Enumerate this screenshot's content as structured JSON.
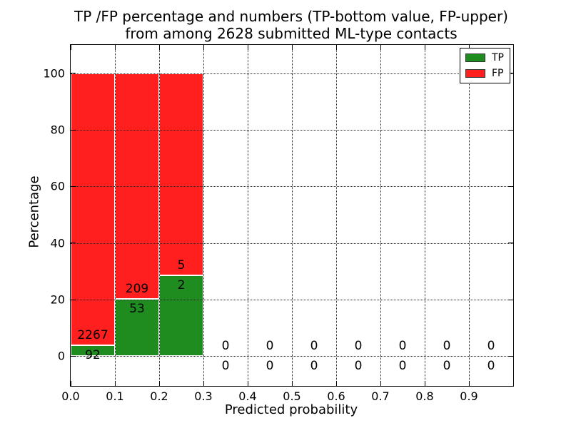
{
  "chart_data": {
    "type": "bar",
    "stacked": true,
    "title": "TP /FP percentage and numbers (TP-bottom value, FP-upper)\nfrom among 2628 submitted ML-type contacts",
    "title_lines": [
      "TP /FP percentage and numbers (TP-bottom value, FP-upper)",
      "from among 2628 submitted ML-type contacts"
    ],
    "xlabel": "Predicted probability",
    "ylabel": "Percentage",
    "xlim": [
      0.0,
      1.0
    ],
    "ylim": [
      -10.5,
      110.0
    ],
    "xticks": [
      0.0,
      0.1,
      0.2,
      0.3,
      0.4,
      0.5,
      0.6,
      0.7,
      0.8,
      0.9
    ],
    "xtick_labels": [
      "0.0",
      "0.1",
      "0.2",
      "0.3",
      "0.4",
      "0.5",
      "0.6",
      "0.7",
      "0.8",
      "0.9"
    ],
    "yticks": [
      0,
      20,
      40,
      60,
      80,
      100
    ],
    "grid": "dotted",
    "legend_position": "upper right",
    "bar_edge_color": "#ffffff",
    "label_offset_pct": 3.5,
    "series": [
      {
        "name": "TP",
        "color": "#1e8c1e"
      },
      {
        "name": "FP",
        "color": "#ff1f1f"
      }
    ],
    "bins": [
      {
        "range": [
          0.0,
          0.1
        ],
        "tp": 92,
        "fp": 2267
      },
      {
        "range": [
          0.1,
          0.2
        ],
        "tp": 53,
        "fp": 209
      },
      {
        "range": [
          0.2,
          0.3
        ],
        "tp": 2,
        "fp": 5
      },
      {
        "range": [
          0.3,
          0.4
        ],
        "tp": 0,
        "fp": 0
      },
      {
        "range": [
          0.4,
          0.5
        ],
        "tp": 0,
        "fp": 0
      },
      {
        "range": [
          0.5,
          0.6
        ],
        "tp": 0,
        "fp": 0
      },
      {
        "range": [
          0.6,
          0.7
        ],
        "tp": 0,
        "fp": 0
      },
      {
        "range": [
          0.7,
          0.8
        ],
        "tp": 0,
        "fp": 0
      },
      {
        "range": [
          0.8,
          0.9
        ],
        "tp": 0,
        "fp": 0
      },
      {
        "range": [
          0.9,
          1.0
        ],
        "tp": 0,
        "fp": 0
      }
    ]
  }
}
